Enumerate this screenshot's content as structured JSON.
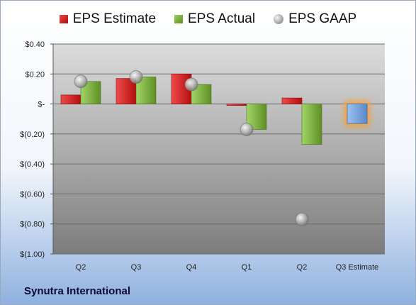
{
  "company": "Synutra International",
  "legend": {
    "estimate": "EPS Estimate",
    "actual": "EPS Actual",
    "gaap": "EPS GAAP"
  },
  "colors": {
    "estimate": "#d42020",
    "actual": "#7fae3a",
    "gaap": "#b8b8b8",
    "future_estimate": "#6f9fdc",
    "highlight": "#f5a13c"
  },
  "chart_data": {
    "type": "bar",
    "categories": [
      "Q2",
      "Q3",
      "Q4",
      "Q1",
      "Q2",
      "Q3 Estimate"
    ],
    "series": [
      {
        "name": "EPS Estimate",
        "values": [
          0.06,
          0.17,
          0.2,
          -0.01,
          0.04,
          null
        ]
      },
      {
        "name": "EPS Actual",
        "values": [
          0.15,
          0.18,
          0.13,
          -0.17,
          -0.27,
          -0.13
        ]
      },
      {
        "name": "EPS GAAP",
        "values": [
          0.15,
          0.18,
          0.13,
          -0.17,
          -0.77,
          null
        ]
      }
    ],
    "ylim": [
      -1.0,
      0.4
    ],
    "yticks": [
      0.4,
      0.2,
      0,
      -0.2,
      -0.4,
      -0.6,
      -0.8,
      -1.0
    ],
    "ytick_labels": [
      "$0.40",
      "$0.20",
      "$-",
      "$(0.20)",
      "$(0.40)",
      "$(0.60)",
      "$(0.80)",
      "$(1.00)"
    ],
    "grid": true,
    "legend_position": "top",
    "notes": "Final category 'Q3 Estimate' is a highlighted future estimate bar (blue with orange glow)."
  }
}
